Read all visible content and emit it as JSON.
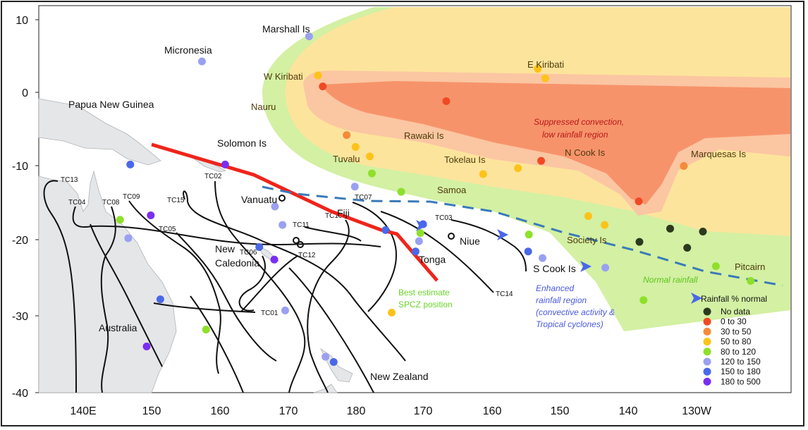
{
  "axes": {
    "y_ticks": [
      "10",
      "0",
      "-10",
      "-20",
      "-30",
      "-40"
    ],
    "x_ticks": [
      "140E",
      "150",
      "160",
      "170",
      "180",
      "170",
      "160",
      "150",
      "140",
      "130W"
    ]
  },
  "regions": {
    "colors": {
      "normal": "#d3f0a3",
      "yellow": "#fde49c",
      "light_orange": "#fbc6a2",
      "dark_orange": "#f7936b"
    },
    "suppressed_line1": "Suppressed convection,",
    "suppressed_line2": "low rainfall region",
    "normal": "Normal rainfall",
    "enhanced_line1": "Enhanced",
    "enhanced_line2": "rainfall region",
    "enhanced_line3": "(convective activity &",
    "enhanced_line4": "Tropical cyclones)",
    "spcz_line1": "Best estimate",
    "spcz_line2": "SPCZ position"
  },
  "places": {
    "marshall": "Marshall Is",
    "micronesia": "Micronesia",
    "w_kiribati": "W Kiribati",
    "e_kiribati": "E Kiribati",
    "nauru": "Nauru",
    "png": "Papua New Guinea",
    "solomon": "Solomon Is",
    "rawaki": "Rawaki Is",
    "n_cook": "N Cook Is",
    "tuvalu": "Tuvalu",
    "tokelau": "Tokelau Is",
    "marquesas": "Marquesas Is",
    "samoa": "Samoa",
    "vanuatu": "Vanuatu",
    "fiji": "Fiji",
    "niue": "Niue",
    "society": "Society Is",
    "new_cal1": "New",
    "new_cal2": "Caledonia",
    "tonga": "Tonga",
    "s_cook": "S Cook Is",
    "pitcairn": "Pitcairn",
    "australia": "Australia",
    "new_zealand": "New Zealand"
  },
  "cyclones": [
    "TC01",
    "TC02",
    "TC03",
    "TC04",
    "TC05",
    "TC06",
    "TC07",
    "TC08",
    "TC09",
    "TC10",
    "TC11",
    "TC12",
    "TC13",
    "TC14",
    "TC15"
  ],
  "legend": {
    "title": "Rainfall % normal",
    "items": [
      {
        "label": "No data",
        "color": "#2b3a1e"
      },
      {
        "label": "0  to  30",
        "color": "#f04a24"
      },
      {
        "label": "30  to  50",
        "color": "#f58a3a"
      },
      {
        "label": "50  to  80",
        "color": "#fdc21a"
      },
      {
        "label": "80  to  120",
        "color": "#8ee02a"
      },
      {
        "label": "120  to  150",
        "color": "#9aa0f0"
      },
      {
        "label": "150  to  180",
        "color": "#4a68e8"
      },
      {
        "label": "180  to  500",
        "color": "#7a2ef0"
      }
    ]
  },
  "stations": [
    {
      "lon": 173.1,
      "lat": 7.6,
      "cat": 5
    },
    {
      "lon": 157.4,
      "lat": 4.2,
      "cat": 5
    },
    {
      "lon": 174.4,
      "lat": 2.3,
      "cat": 3
    },
    {
      "lon": 175.1,
      "lat": 0.8,
      "cat": 1
    },
    {
      "lon": -153.4,
      "lat": 3.2,
      "cat": 3
    },
    {
      "lon": -152.3,
      "lat": 1.9,
      "cat": 3
    },
    {
      "lon": -166.8,
      "lat": -1.2,
      "cat": 1
    },
    {
      "lon": 178.6,
      "lat": -5.8,
      "cat": 2
    },
    {
      "lon": 179.9,
      "lat": -7.4,
      "cat": 3
    },
    {
      "lon": -178,
      "lat": -8.7,
      "cat": 3
    },
    {
      "lon": -152.9,
      "lat": -9.3,
      "cat": 1
    },
    {
      "lon": -132,
      "lat": -10,
      "cat": 2
    },
    {
      "lon": -177.7,
      "lat": -11,
      "cat": 4
    },
    {
      "lon": -156.3,
      "lat": -10.3,
      "cat": 3
    },
    {
      "lon": -161.4,
      "lat": -11.1,
      "cat": 3
    },
    {
      "lon": 179.8,
      "lat": -12.8,
      "cat": 5
    },
    {
      "lon": -173.4,
      "lat": -13.5,
      "cat": 4
    },
    {
      "lon": -138.6,
      "lat": -14.8,
      "cat": 1
    },
    {
      "lon": -146,
      "lat": -16.8,
      "cat": 3
    },
    {
      "lon": -143.6,
      "lat": -18,
      "cat": 3
    },
    {
      "lon": -134,
      "lat": -18.5,
      "cat": 0
    },
    {
      "lon": -129.2,
      "lat": -18.9,
      "cat": 0
    },
    {
      "lon": -131.5,
      "lat": -21.1,
      "cat": 0
    },
    {
      "lon": -138.5,
      "lat": -20.3,
      "cat": 0
    },
    {
      "lon": -170.2,
      "lat": -17.9,
      "cat": 6
    },
    {
      "lon": -170.6,
      "lat": -19.1,
      "cat": 4
    },
    {
      "lon": -154.7,
      "lat": -19.3,
      "cat": 4
    },
    {
      "lon": -154.8,
      "lat": -21.6,
      "cat": 6
    },
    {
      "lon": -152.7,
      "lat": -22.5,
      "cat": 5
    },
    {
      "lon": -143.5,
      "lat": -23.8,
      "cat": 5
    },
    {
      "lon": -170.8,
      "lat": -20.2,
      "cat": 5
    },
    {
      "lon": -171.3,
      "lat": -21.6,
      "cat": 6
    },
    {
      "lon": -175.7,
      "lat": -18.7,
      "cat": 6
    },
    {
      "lon": -127.3,
      "lat": -23.6,
      "cat": 4
    },
    {
      "lon": -122.2,
      "lat": -25.6,
      "cat": 4
    },
    {
      "lon": -137.9,
      "lat": -28.2,
      "cat": 4
    },
    {
      "lon": -174.8,
      "lat": -29.9,
      "cat": 3
    },
    {
      "lon": 160.8,
      "lat": -9.8,
      "cat": 7
    },
    {
      "lon": 146.9,
      "lat": -9.8,
      "cat": 6
    },
    {
      "lon": 168.1,
      "lat": -15.5,
      "cat": 5
    },
    {
      "lon": 169.2,
      "lat": -18,
      "cat": 5
    },
    {
      "lon": 149.9,
      "lat": -16.7,
      "cat": 7
    },
    {
      "lon": 145.4,
      "lat": -17.3,
      "cat": 4
    },
    {
      "lon": 146.6,
      "lat": -19.8,
      "cat": 5
    },
    {
      "lon": 165.8,
      "lat": -21,
      "cat": 6
    },
    {
      "lon": 168,
      "lat": -22.7,
      "cat": 7
    },
    {
      "lon": 151.3,
      "lat": -28.1,
      "cat": 6
    },
    {
      "lon": 158,
      "lat": -32.2,
      "cat": 4
    },
    {
      "lon": 169.6,
      "lat": -29.6,
      "cat": 5
    },
    {
      "lon": 149.3,
      "lat": -34.5,
      "cat": 7
    },
    {
      "lon": 175.5,
      "lat": -35.9,
      "cat": 5
    },
    {
      "lon": 176.7,
      "lat": -36.6,
      "cat": 6
    }
  ]
}
